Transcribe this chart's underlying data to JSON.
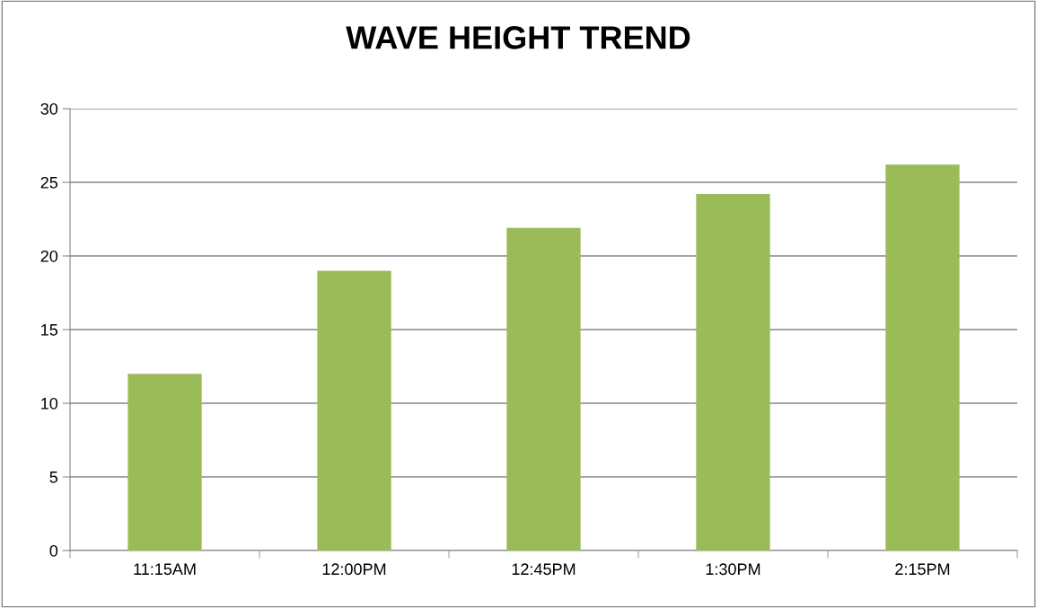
{
  "chart_data": {
    "type": "bar",
    "title": "WAVE HEIGHT TREND",
    "categories": [
      "11:15AM",
      "12:00PM",
      "12:45PM",
      "1:30PM",
      "2:15PM"
    ],
    "values": [
      12.0,
      19.0,
      21.9,
      24.2,
      26.2
    ],
    "color": "#9bbb59",
    "ylim": [
      0,
      30
    ],
    "yticks": [
      0,
      5,
      10,
      15,
      20,
      25,
      30
    ],
    "grid": "y"
  }
}
